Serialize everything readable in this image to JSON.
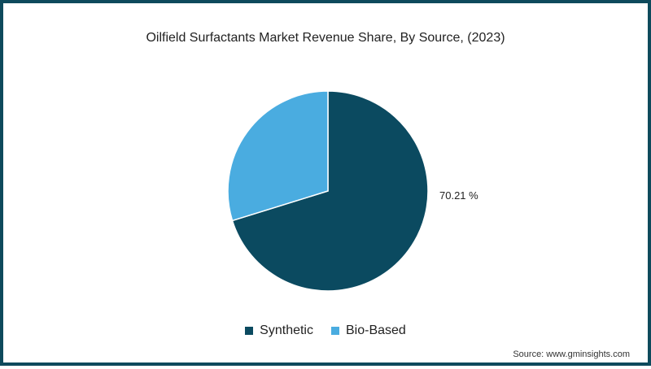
{
  "chart_data": {
    "type": "pie",
    "title": "Oilfield Surfactants Market Revenue Share, By Source, (2023)",
    "categories": [
      "Synthetic",
      "Bio-Based"
    ],
    "values": [
      70.21,
      29.79
    ],
    "colors": [
      "#0b4a60",
      "#4aace0"
    ],
    "data_labels": [
      {
        "category": "Synthetic",
        "text": "70.21 %"
      }
    ],
    "legend": {
      "position": "bottom",
      "entries": [
        "Synthetic",
        "Bio-Based"
      ]
    },
    "start_angle": "12 o'clock, clockwise"
  },
  "title": "Oilfield Surfactants Market Revenue Share, By Source, (2023)",
  "labels": {
    "synthetic_pct": "70.21 %"
  },
  "legend": {
    "items": [
      {
        "label": "Synthetic",
        "color": "#0b4a60"
      },
      {
        "label": "Bio-Based",
        "color": "#4aace0"
      }
    ]
  },
  "source": "Source: www.gminsights.com",
  "colors": {
    "frame": "#0e4a5c"
  }
}
